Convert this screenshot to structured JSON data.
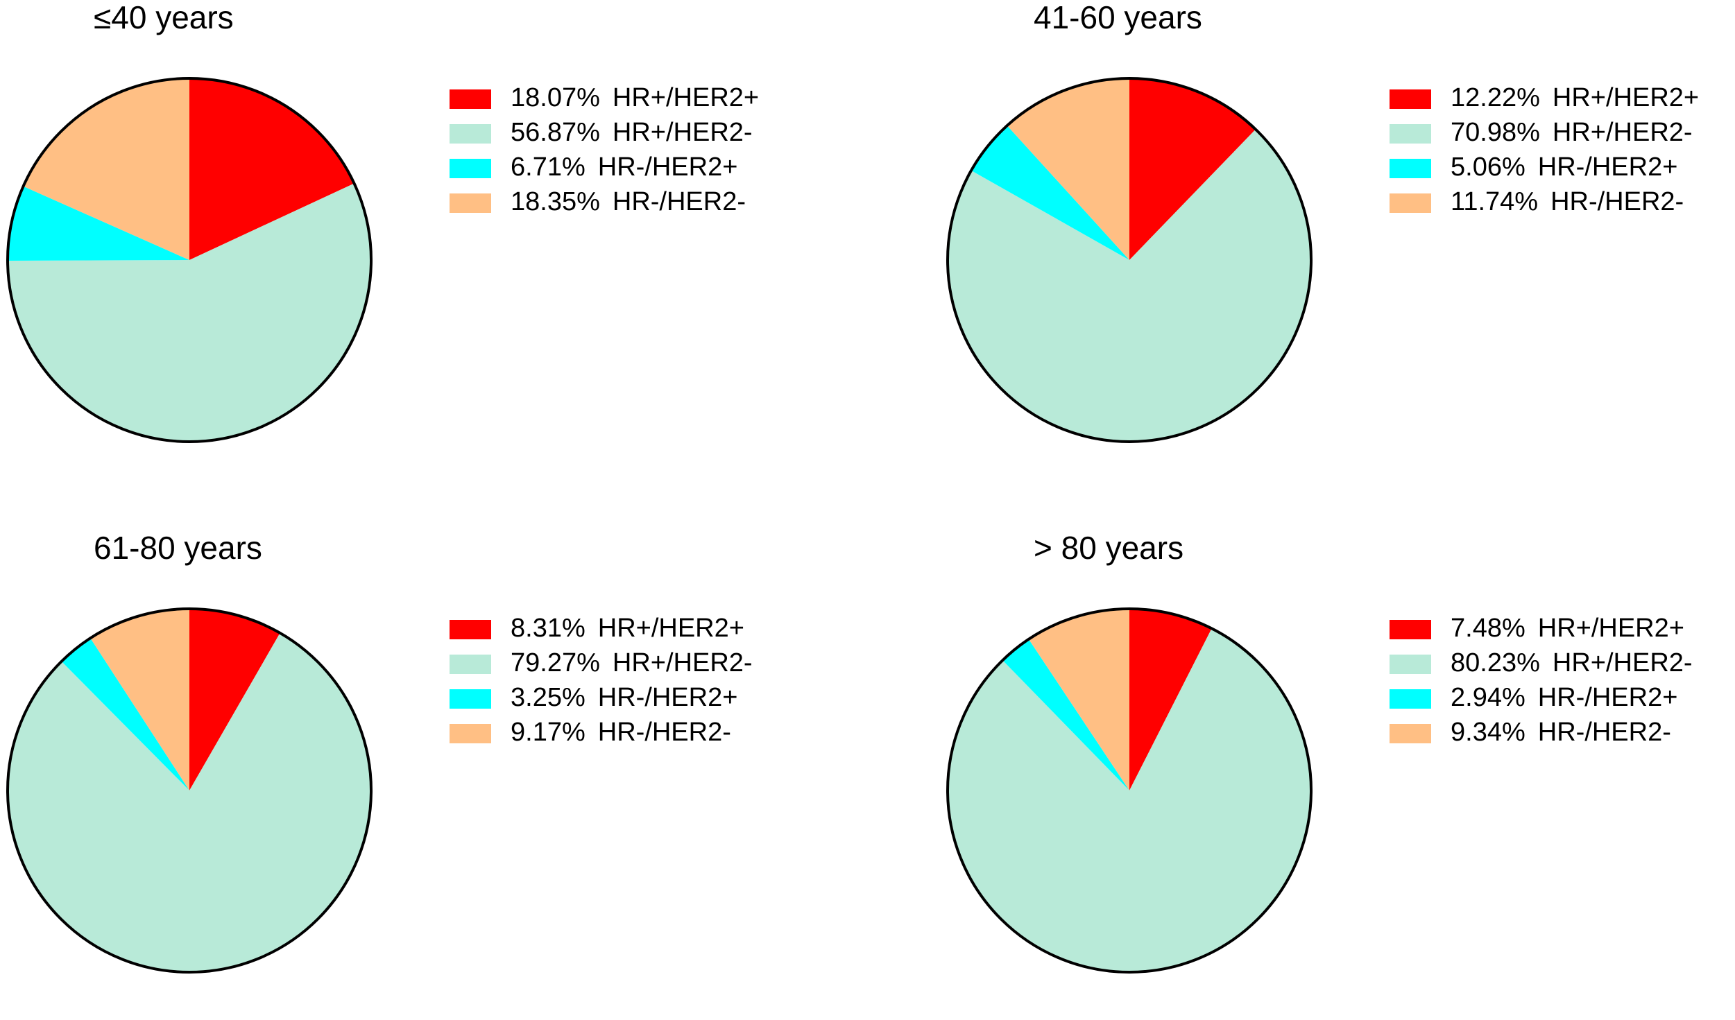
{
  "colors": {
    "HR+/HER2+": "#ff0000",
    "HR+/HER2-": "#b8ead8",
    "HR-/HER2+": "#00ffff",
    "HR-/HER2-": "#ffbf84",
    "outline": "#000000"
  },
  "chart_data": [
    {
      "type": "pie",
      "title": "≤40 years",
      "categories": [
        "HR+/HER2+",
        "HR+/HER2-",
        "HR-/HER2+",
        "HR-/HER2-"
      ],
      "values": [
        18.07,
        56.87,
        6.71,
        18.35
      ],
      "value_labels": [
        "18.07%",
        "56.87%",
        "6.71%",
        "18.35%"
      ],
      "legend": "right"
    },
    {
      "type": "pie",
      "title": "41-60 years",
      "categories": [
        "HR+/HER2+",
        "HR+/HER2-",
        "HR-/HER2+",
        "HR-/HER2-"
      ],
      "values": [
        12.22,
        70.98,
        5.06,
        11.74
      ],
      "value_labels": [
        "12.22%",
        "70.98%",
        "5.06%",
        "11.74%"
      ],
      "legend": "right"
    },
    {
      "type": "pie",
      "title": "61-80 years",
      "categories": [
        "HR+/HER2+",
        "HR+/HER2-",
        "HR-/HER2+",
        "HR-/HER2-"
      ],
      "values": [
        8.31,
        79.27,
        3.25,
        9.17
      ],
      "value_labels": [
        "8.31%",
        "79.27%",
        "3.25%",
        "9.17%"
      ],
      "legend": "right"
    },
    {
      "type": "pie",
      "title": "> 80 years",
      "categories": [
        "HR+/HER2+",
        "HR+/HER2-",
        "HR-/HER2+",
        "HR-/HER2-"
      ],
      "values": [
        7.48,
        80.23,
        2.94,
        9.34
      ],
      "value_labels": [
        "7.48%",
        "80.23%",
        "2.94%",
        "9.34%"
      ],
      "legend": "right"
    }
  ]
}
